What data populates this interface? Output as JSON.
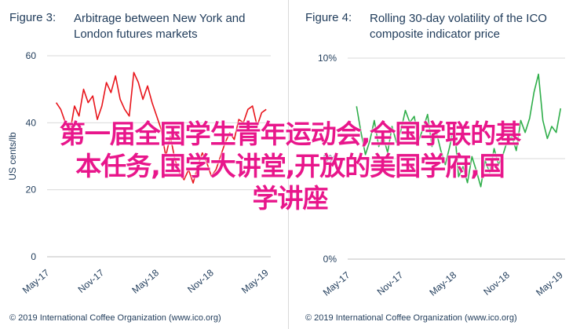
{
  "colors": {
    "arbitrage_line": "#e8141b",
    "volatility_line": "#2fae4a",
    "text": "#1f3b5a",
    "grid": "#d9d9d9",
    "watermark": "#e8168b"
  },
  "chart_data": [
    {
      "type": "line",
      "figure_label": "Figure 3:",
      "title_lines": [
        "Arbitrage between New York and",
        "London futures markets"
      ],
      "ylabel": "US cents/lb",
      "ylim": [
        0,
        60
      ],
      "yticks": [
        "60",
        "40",
        "20",
        "0"
      ],
      "ytick_values": [
        60,
        40,
        20,
        0
      ],
      "xlim": [
        0,
        24.5
      ],
      "xticks": [
        "May-17",
        "Nov-17",
        "May-18",
        "Nov-18",
        "May-19"
      ],
      "xtick_positions": [
        0,
        6,
        12,
        18,
        24
      ],
      "grid": true,
      "series": [
        {
          "x": [
            1.0,
            1.5,
            2.0,
            2.5,
            3.0,
            3.5,
            4.0,
            4.5,
            5.0,
            5.5,
            6.0,
            6.5,
            7.0,
            7.5,
            8.0,
            8.5,
            9.0,
            9.5,
            10.0,
            10.5,
            11.0,
            11.5,
            12.0,
            12.5,
            13.0,
            13.5,
            14.0,
            14.5,
            15.0,
            15.5,
            16.0,
            16.5,
            17.0,
            17.5,
            18.0,
            18.5,
            19.0,
            19.5,
            20.0,
            20.5,
            21.0,
            21.5,
            22.0,
            22.5,
            23.0,
            23.5,
            24.0
          ],
          "y": [
            46,
            44,
            40,
            37,
            45,
            42,
            50,
            46,
            48,
            41,
            45,
            52,
            49,
            54,
            47,
            44,
            42,
            55,
            52,
            47,
            51,
            46,
            42,
            38,
            30,
            36,
            29,
            25,
            23,
            26,
            22,
            27,
            31,
            28,
            24,
            26,
            30,
            34,
            37,
            35,
            41,
            40,
            44,
            45,
            39,
            43,
            44
          ]
        }
      ],
      "credit": "© 2019 International Coffee Organization (www.ico.org)"
    },
    {
      "type": "line",
      "figure_label": "Figure 4:",
      "title_lines": [
        "Rolling 30-day volatility of the ICO",
        "composite indicator price"
      ],
      "ylim": [
        0,
        10
      ],
      "yticks": [
        "10%",
        "5%",
        "0%"
      ],
      "ytick_values": [
        10,
        5,
        0
      ],
      "xlim": [
        0,
        24.5
      ],
      "xticks": [
        "May-17",
        "Nov-17",
        "May-18",
        "Nov-18",
        "May-19"
      ],
      "xtick_positions": [
        0,
        6,
        12,
        18,
        24
      ],
      "grid": true,
      "series": [
        {
          "x": [
            1.0,
            1.5,
            2.0,
            2.5,
            3.0,
            3.5,
            4.0,
            4.5,
            5.0,
            5.5,
            6.0,
            6.5,
            7.0,
            7.5,
            8.0,
            8.5,
            9.0,
            9.5,
            10.0,
            10.5,
            11.0,
            11.5,
            12.0,
            12.5,
            13.0,
            13.5,
            14.0,
            14.5,
            15.0,
            15.5,
            16.0,
            16.5,
            17.0,
            17.5,
            18.0,
            18.5,
            19.0,
            19.5,
            20.0,
            20.5,
            21.0,
            21.5,
            22.0,
            22.5,
            23.0,
            23.5,
            24.0
          ],
          "y": [
            7.6,
            6.3,
            5.2,
            5.9,
            6.9,
            5.6,
            6.1,
            5.3,
            6.6,
            5.8,
            6.4,
            7.4,
            6.8,
            7.1,
            5.9,
            6.5,
            7.2,
            5.6,
            6.3,
            5.4,
            4.7,
            5.6,
            6.7,
            4.1,
            4.6,
            3.8,
            5.1,
            4.4,
            3.6,
            4.9,
            4.3,
            5.5,
            4.7,
            5.2,
            5.9,
            6.1,
            5.4,
            6.9,
            6.3,
            7.0,
            8.3,
            9.2,
            6.9,
            6.0,
            6.6,
            6.3,
            7.5
          ]
        }
      ],
      "credit": "© 2019 International Coffee Organization (www.ico.org)"
    }
  ],
  "watermark": {
    "lines": [
      "第一届全国学生青年运动会,全国学联的基",
      "本任务,国学大讲堂,开放的美国学府,国",
      "学讲座"
    ]
  }
}
